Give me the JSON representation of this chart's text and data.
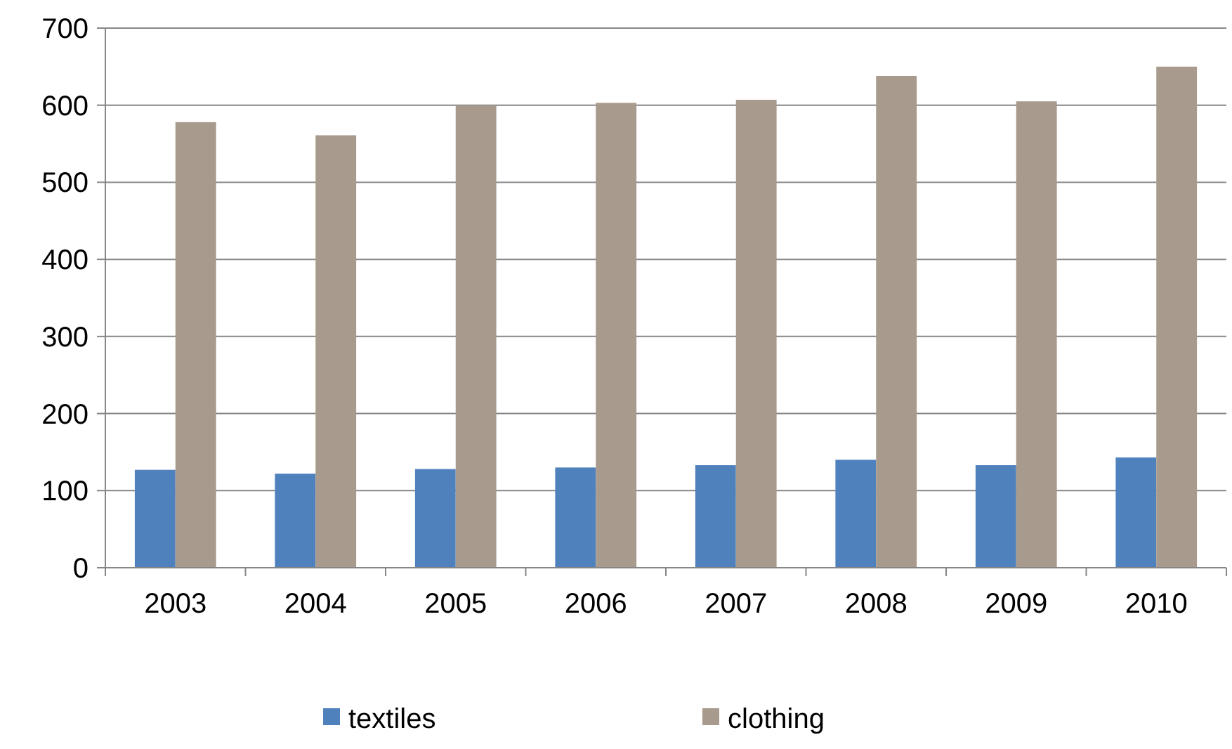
{
  "chart_data": {
    "type": "bar",
    "categories": [
      "2003",
      "2004",
      "2005",
      "2006",
      "2007",
      "2008",
      "2009",
      "2010"
    ],
    "series": [
      {
        "name": "textiles",
        "color": "#4f81bd",
        "values": [
          127,
          122,
          128,
          130,
          133,
          140,
          133,
          143
        ]
      },
      {
        "name": "clothing",
        "color": "#a89a8c",
        "values": [
          578,
          561,
          600,
          603,
          607,
          638,
          605,
          650
        ]
      }
    ],
    "ylim": [
      0,
      700
    ],
    "yticks": [
      0,
      100,
      200,
      300,
      400,
      500,
      600,
      700
    ],
    "grid": "y",
    "legend": "bottom"
  }
}
